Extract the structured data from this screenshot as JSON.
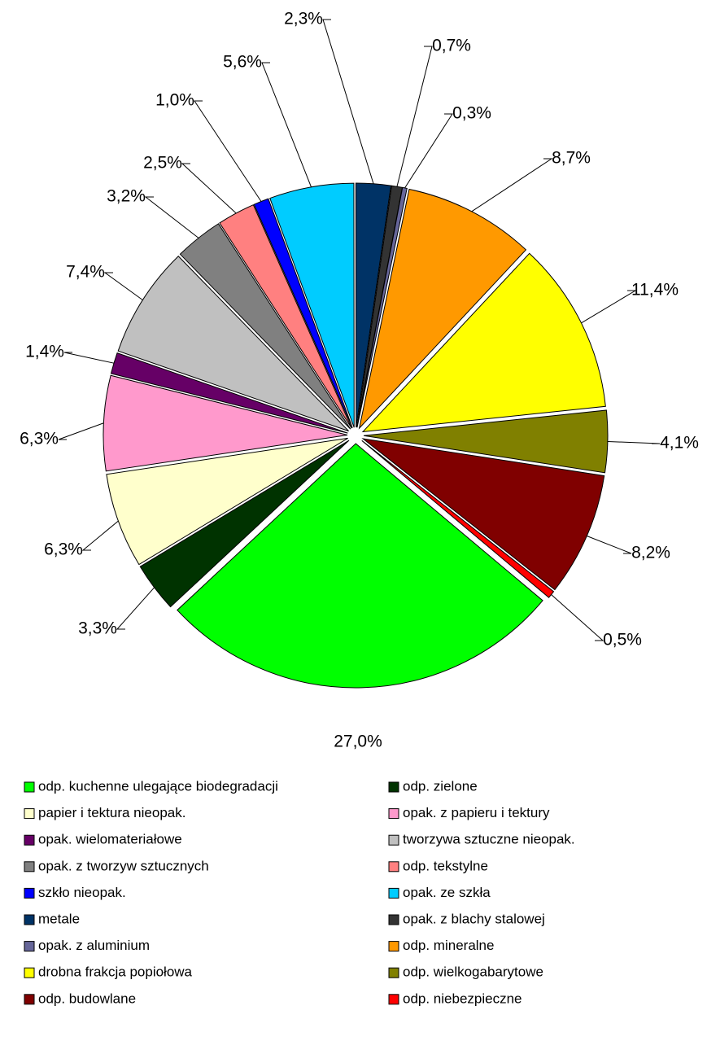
{
  "chart_data": {
    "type": "pie",
    "start_angle": 130,
    "categories": [
      "odp. kuchenne ulegające biodegradacji",
      "odp. zielone",
      "papier i tektura nieopak.",
      "opak. z papieru i tektury",
      "opak. wielomateriałowe",
      "tworzywa sztuczne nieopak.",
      "opak. z tworzyw sztucznych",
      "odp. tekstylne",
      "szkło nieopak.",
      "opak. ze szkła",
      "metale",
      "opak. z blachy stalowej",
      "opak. z aluminium",
      "odp. mineralne",
      "drobna frakcja popiołowa",
      "odp. wielkogabarytowe",
      "odp. budowlane",
      "odp. niebezpieczne"
    ],
    "values": [
      27.0,
      3.3,
      6.3,
      6.3,
      1.4,
      7.4,
      3.2,
      2.5,
      1.0,
      5.6,
      2.3,
      0.7,
      0.3,
      8.7,
      11.4,
      4.1,
      8.2,
      0.5
    ],
    "value_labels": [
      "27,0%",
      "3,3%",
      "6,3%",
      "6,3%",
      "1,4%",
      "7,4%",
      "3,2%",
      "2,5%",
      "1,0%",
      "5,6%",
      "2,3%",
      "0,7%",
      "0,3%",
      "8,7%",
      "11,4%",
      "4,1%",
      "8,2%",
      "0,5%"
    ],
    "colors": [
      "#00ff00",
      "#003300",
      "#ffffcc",
      "#ff99cc",
      "#660066",
      "#c0c0c0",
      "#808080",
      "#ff8080",
      "#0000ff",
      "#00ccff",
      "#003366",
      "#333333",
      "#666699",
      "#ff9900",
      "#ffff00",
      "#808000",
      "#800000",
      "#ff0000"
    ],
    "legend": "bottom"
  }
}
